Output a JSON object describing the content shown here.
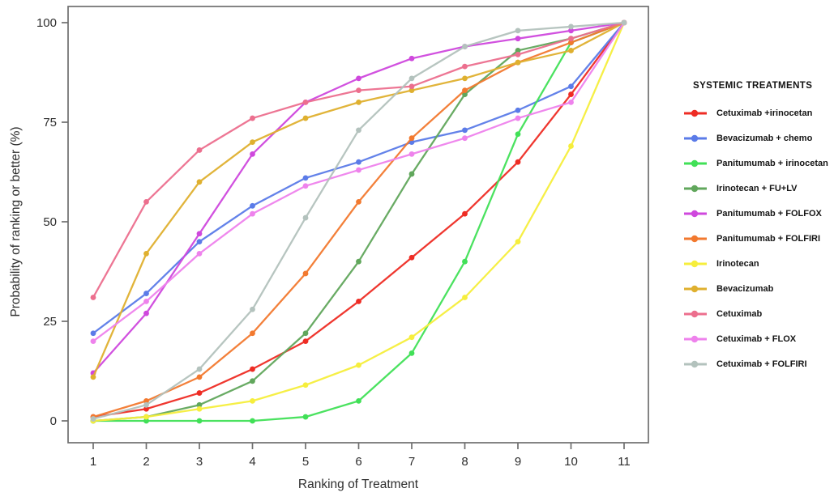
{
  "window": {
    "background": "#ffffff"
  },
  "chart_data": {
    "type": "line",
    "title": "",
    "xlabel": "Ranking of Treatment",
    "ylabel": "Probability of ranking or better (%)",
    "x": [
      1,
      2,
      3,
      4,
      5,
      6,
      7,
      8,
      9,
      10,
      11
    ],
    "xlim": [
      1,
      11
    ],
    "ylim": [
      0,
      100
    ],
    "yticks": [
      0,
      25,
      50,
      75,
      100
    ],
    "xticks": [
      1,
      2,
      3,
      4,
      5,
      6,
      7,
      8,
      9,
      10,
      11
    ],
    "grid": false,
    "legend_position": "right",
    "legend_title": "SYSTEMIC TREATMENTS",
    "marker": "circle",
    "series": [
      {
        "name": "Cetuximab +irinocetan",
        "color": "#ee2c24",
        "values": [
          1,
          3,
          7,
          13,
          20,
          30,
          41,
          52,
          65,
          82,
          100
        ]
      },
      {
        "name": "Bevacizumab + chemo",
        "color": "#5b7be8",
        "values": [
          22,
          32,
          45,
          54,
          61,
          65,
          70,
          73,
          78,
          84,
          100
        ]
      },
      {
        "name": "Panitumumab + irinocetan",
        "color": "#41e057",
        "values": [
          0,
          0,
          0,
          0,
          1,
          5,
          17,
          40,
          72,
          95,
          100
        ]
      },
      {
        "name": "Irinotecan + FU+LV",
        "color": "#61a75c",
        "values": [
          0,
          1,
          4,
          10,
          22,
          40,
          62,
          82,
          93,
          96,
          100
        ]
      },
      {
        "name": "Panitumumab  + FOLFOX",
        "color": "#cf48dd",
        "values": [
          12,
          27,
          47,
          67,
          80,
          86,
          91,
          94,
          96,
          98,
          100
        ]
      },
      {
        "name": "Panitumumab + FOLFIRI",
        "color": "#f2792f",
        "values": [
          1,
          5,
          11,
          22,
          37,
          55,
          71,
          83,
          90,
          95,
          100
        ]
      },
      {
        "name": "Irinotecan",
        "color": "#f6ee3c",
        "values": [
          0,
          1,
          3,
          5,
          9,
          14,
          21,
          31,
          45,
          69,
          100
        ]
      },
      {
        "name": "Bevacizumab",
        "color": "#dfb02f",
        "values": [
          11,
          42,
          60,
          70,
          76,
          80,
          83,
          86,
          90,
          93,
          100
        ]
      },
      {
        "name": "Cetuximab",
        "color": "#ec6f8e",
        "values": [
          31,
          55,
          68,
          76,
          80,
          83,
          84,
          89,
          92,
          96,
          100
        ]
      },
      {
        "name": "Cetuximab +  FLOX",
        "color": "#ee82ec",
        "values": [
          20,
          30,
          42,
          52,
          59,
          63,
          67,
          71,
          76,
          80,
          100
        ]
      },
      {
        "name": "Cetuximab + FOLFIRI",
        "color": "#b3c2bd",
        "values": [
          0.5,
          4,
          13,
          28,
          51,
          73,
          86,
          94,
          98,
          99,
          100
        ]
      }
    ]
  },
  "axes": {
    "box_color": "#6e6e6e",
    "tick_label_color": "#2e2e2e",
    "axis_label_color": "#2e2e2e"
  }
}
